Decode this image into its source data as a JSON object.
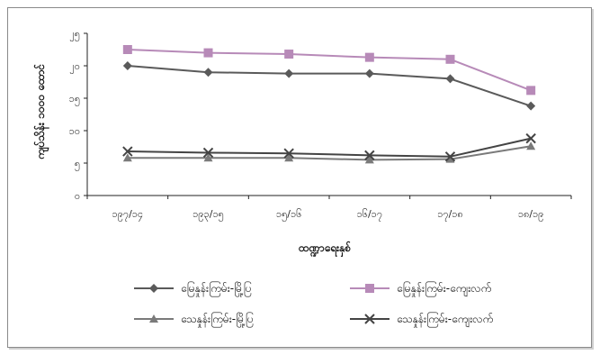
{
  "chart_data": {
    "type": "line",
    "xlabel": "ထဏ္ဍာရေးနှစ်",
    "ylabel": "ကျပ်သိန်း ၁၀၀၀ ထောင်",
    "categories": [
      "၁၉၇/၁၄",
      "၁၉၃/၁၅",
      "၁၅/၁၆",
      "၁၆/၁၇",
      "၁၇/၁၈",
      "၁၈/၁၉"
    ],
    "y_ticks": [
      "၀",
      "၅",
      "၁၀",
      "၁၅",
      "၂၀",
      "၂၅"
    ],
    "ylim": [
      0,
      25
    ],
    "grid": false,
    "legend_position": "bottom",
    "series": [
      {
        "name": "မြေနှုန်းကြမ်း-မြို့ပြ",
        "values": [
          20,
          19,
          18.8,
          18.8,
          18,
          13.8
        ],
        "color": "#5a5a5a",
        "marker": "diamond"
      },
      {
        "name": "မြေနှုန်းကြမ်း-ကျေးလက်",
        "values": [
          22.5,
          22,
          21.8,
          21.3,
          21,
          16.2
        ],
        "color": "#b78ab8",
        "marker": "square"
      },
      {
        "name": "သေနှုန်းကြမ်း-မြို့ပြ",
        "values": [
          5.8,
          5.8,
          5.8,
          5.5,
          5.6,
          7.6
        ],
        "color": "#7a7a7a",
        "marker": "triangle"
      },
      {
        "name": "သေနှုန်းကြမ်း-ကျေးလက်",
        "values": [
          6.8,
          6.6,
          6.5,
          6.2,
          6.0,
          8.8
        ],
        "color": "#444444",
        "marker": "x"
      }
    ]
  }
}
